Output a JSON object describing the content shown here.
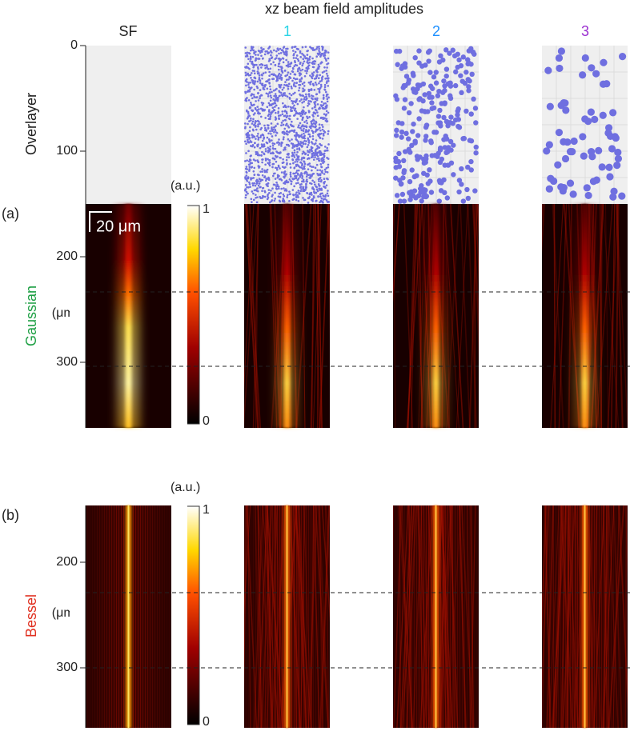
{
  "title": "xz beam field amplitudes",
  "columns": [
    "SF",
    "1",
    "2",
    "3"
  ],
  "overlayer_label": "Overlayer",
  "panels": [
    {
      "label": "(a)",
      "beam": "Gaussian",
      "ticks": [
        0,
        100,
        200,
        300
      ],
      "unit": "(μm)",
      "colorbar": {
        "label": "(a.u.)",
        "max": 1,
        "min": 0
      },
      "scale_bar": "20 μm"
    },
    {
      "label": "(b)",
      "beam": "Bessel",
      "ticks": [
        200,
        300
      ],
      "unit": "(μm)",
      "colorbar": {
        "label": "(a.u.)",
        "max": 1,
        "min": 0
      }
    }
  ]
}
